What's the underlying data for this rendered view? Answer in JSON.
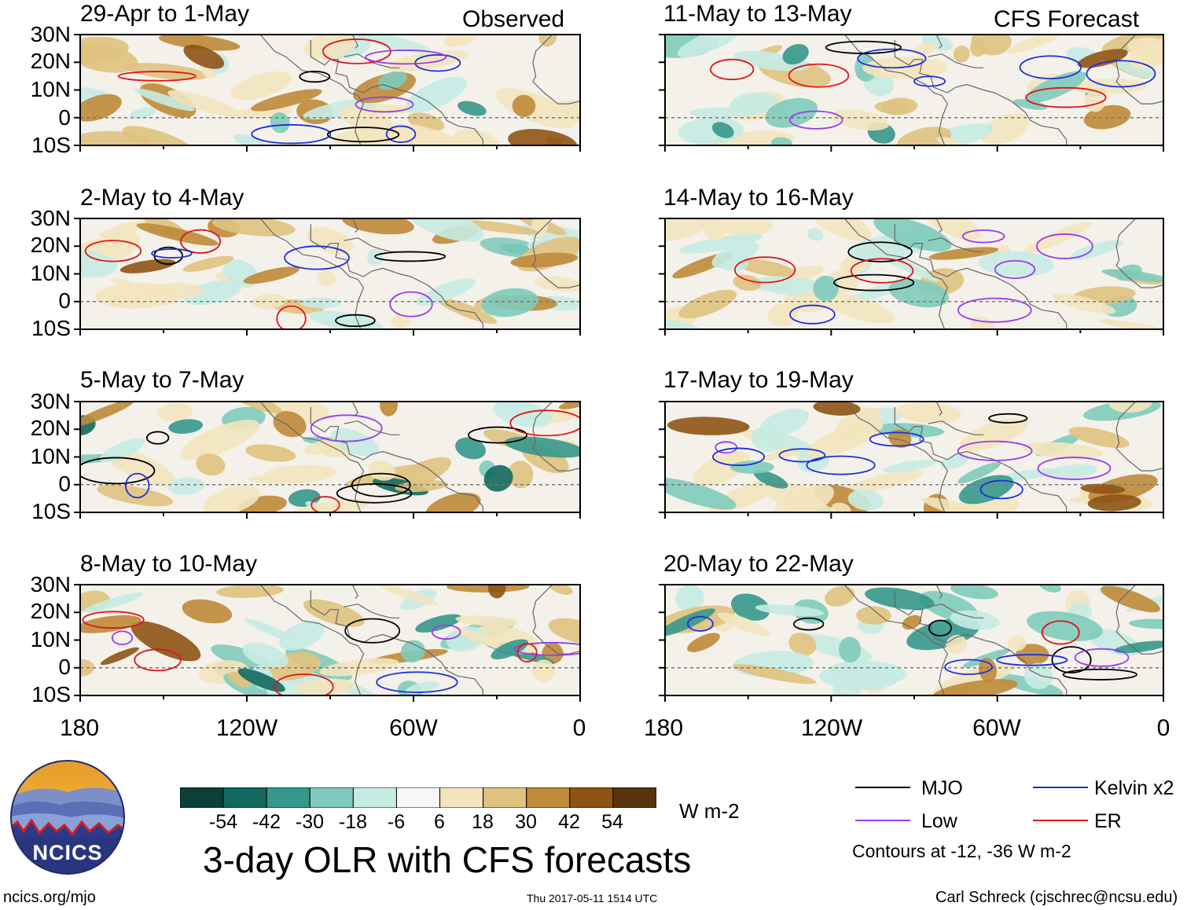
{
  "figure": {
    "main_title": "3-day OLR with CFS forecasts",
    "source_url": "ncics.org/mjo",
    "timestamp": "Thu 2017-05-11 1514 UTC",
    "author": "Carl Schreck (cjschrec@ncsu.edu)",
    "logo_text": "NCICS",
    "observed_label": "Observed",
    "forecast_label": "CFS Forecast"
  },
  "chart_data": {
    "type": "heatmap",
    "variable": "OLR anomaly",
    "units": "W m-2",
    "lat_ticks": [
      "30N",
      "20N",
      "10N",
      "0",
      "10S"
    ],
    "lat_values": [
      30,
      20,
      10,
      0,
      -10
    ],
    "lon_ticks": [
      "180",
      "120W",
      "60W",
      "0"
    ],
    "lon_values": [
      -180,
      -120,
      -60,
      0
    ],
    "xlim": [
      -180,
      0
    ],
    "ylim": [
      -10,
      30
    ],
    "panels": [
      {
        "title": "29-Apr to 1-May",
        "type": "Observed"
      },
      {
        "title": "2-May to 4-May",
        "type": "Observed"
      },
      {
        "title": "5-May to 7-May",
        "type": "Observed"
      },
      {
        "title": "8-May to 10-May",
        "type": "Observed"
      },
      {
        "title": "11-May to 13-May",
        "type": "CFS Forecast"
      },
      {
        "title": "14-May to 16-May",
        "type": "CFS Forecast"
      },
      {
        "title": "17-May to 19-May",
        "type": "CFS Forecast"
      },
      {
        "title": "20-May to 22-May",
        "type": "CFS Forecast"
      }
    ],
    "colorbar": {
      "tick_labels": [
        "-54",
        "-42",
        "-30",
        "-18",
        "-6",
        "6",
        "18",
        "30",
        "42",
        "54"
      ],
      "colors": [
        "#0b3f37",
        "#13695e",
        "#36978b",
        "#7fcbbd",
        "#c6ebe3",
        "#f7f7f7",
        "#f3e4be",
        "#e0c27f",
        "#bf8a3a",
        "#8e5415",
        "#5a340c"
      ],
      "units": "W m-2"
    },
    "contours_note": "Contours at -12, -36 W m-2",
    "legend": [
      {
        "label": "MJO",
        "color": "#000000"
      },
      {
        "label": "Kelvin x2",
        "color": "#1d2fdb"
      },
      {
        "label": "Low",
        "color": "#9a3bea"
      },
      {
        "label": "ER",
        "color": "#e0141a"
      }
    ]
  }
}
